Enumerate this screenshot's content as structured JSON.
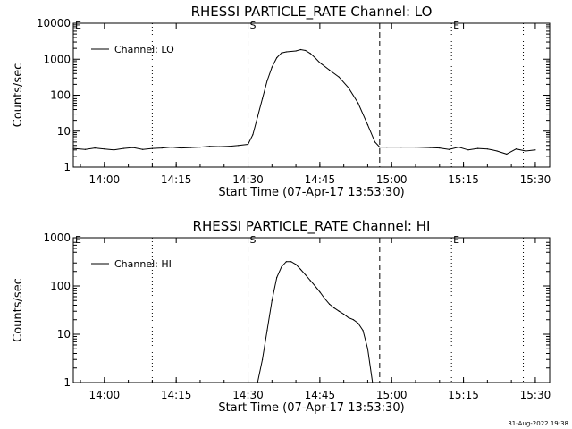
{
  "footer_timestamp": "31-Aug-2022 19:38",
  "chart_data": [
    {
      "type": "line",
      "title": "RHESSI PARTICLE_RATE Channel: LO",
      "xlabel": "Start Time (07-Apr-17 13:53:30)",
      "ylabel": "Counts/sec",
      "yscale": "log",
      "xlim": [
        "13:53:30",
        "15:33:00"
      ],
      "ylim": [
        1,
        10000
      ],
      "x_ticks": [
        "14:00",
        "14:15",
        "14:30",
        "14:45",
        "15:00",
        "15:15",
        "15:30"
      ],
      "y_ticks": [
        "1",
        "10",
        "100",
        "1000",
        "10000"
      ],
      "legend": {
        "placement": "top-left",
        "entries": [
          "Channel: LO"
        ]
      },
      "markers": [
        {
          "label": "E",
          "time": "13:53:30",
          "style": "dotted"
        },
        {
          "label": "",
          "time": "14:10:00",
          "style": "dotted"
        },
        {
          "label": "S",
          "time": "14:30:00",
          "style": "dashed"
        },
        {
          "label": "",
          "time": "14:57:30",
          "style": "dashed"
        },
        {
          "label": "E",
          "time": "15:12:30",
          "style": "dotted"
        },
        {
          "label": "",
          "time": "15:27:30",
          "style": "dotted"
        }
      ],
      "series": [
        {
          "name": "Channel: LO",
          "x": [
            "13:53:30",
            "13:56:00",
            "13:58:00",
            "14:00:00",
            "14:02:00",
            "14:04:00",
            "14:06:00",
            "14:08:00",
            "14:10:00",
            "14:12:00",
            "14:14:00",
            "14:16:00",
            "14:18:00",
            "14:20:00",
            "14:22:00",
            "14:24:00",
            "14:26:00",
            "14:28:00",
            "14:30:00",
            "14:31:00",
            "14:32:00",
            "14:33:00",
            "14:34:00",
            "14:35:00",
            "14:36:00",
            "14:37:00",
            "14:38:00",
            "14:40:00",
            "14:41:00",
            "14:42:00",
            "14:43:00",
            "14:44:00",
            "14:45:00",
            "14:47:00",
            "14:49:00",
            "14:51:00",
            "14:53:00",
            "14:55:00",
            "14:56:30",
            "14:57:30",
            "14:59:00",
            "15:02:00",
            "15:05:00",
            "15:08:00",
            "15:10:00",
            "15:12:00",
            "15:14:00",
            "15:16:00",
            "15:18:00",
            "15:20:00",
            "15:21:00",
            "15:22:00",
            "15:24:00",
            "15:26:00",
            "15:28:00",
            "15:30:00"
          ],
          "y": [
            3.3,
            3.1,
            3.4,
            3.2,
            3.0,
            3.3,
            3.5,
            3.1,
            3.3,
            3.4,
            3.6,
            3.4,
            3.5,
            3.6,
            3.8,
            3.7,
            3.8,
            4.0,
            4.3,
            8,
            25,
            80,
            250,
            600,
            1100,
            1500,
            1600,
            1700,
            1850,
            1750,
            1450,
            1100,
            800,
            500,
            320,
            160,
            60,
            15,
            5,
            3.6,
            3.6,
            3.6,
            3.6,
            3.5,
            3.4,
            3.1,
            3.6,
            3.0,
            3.3,
            3.2,
            3.0,
            2.8,
            2.3,
            3.2,
            2.8,
            3.0
          ]
        }
      ]
    },
    {
      "type": "line",
      "title": "RHESSI PARTICLE_RATE Channel: HI",
      "xlabel": "Start Time (07-Apr-17 13:53:30)",
      "ylabel": "Counts/sec",
      "yscale": "log",
      "xlim": [
        "13:53:30",
        "15:33:00"
      ],
      "ylim": [
        1,
        1000
      ],
      "x_ticks": [
        "14:00",
        "14:15",
        "14:30",
        "14:45",
        "15:00",
        "15:15",
        "15:30"
      ],
      "y_ticks": [
        "1",
        "10",
        "100",
        "1000"
      ],
      "legend": {
        "placement": "top-left",
        "entries": [
          "Channel: HI"
        ]
      },
      "markers": [
        {
          "label": "E",
          "time": "13:53:30",
          "style": "dotted"
        },
        {
          "label": "",
          "time": "14:10:00",
          "style": "dotted"
        },
        {
          "label": "S",
          "time": "14:30:00",
          "style": "dashed"
        },
        {
          "label": "",
          "time": "14:57:30",
          "style": "dashed"
        },
        {
          "label": "E",
          "time": "15:12:30",
          "style": "dotted"
        },
        {
          "label": "",
          "time": "15:27:30",
          "style": "dotted"
        }
      ],
      "series": [
        {
          "name": "Channel: HI",
          "x": [
            "14:32:00",
            "14:33:00",
            "14:34:00",
            "14:35:00",
            "14:36:00",
            "14:37:00",
            "14:38:00",
            "14:39:00",
            "14:40:00",
            "14:41:00",
            "14:42:00",
            "14:43:00",
            "14:44:00",
            "14:45:00",
            "14:46:00",
            "14:47:00",
            "14:48:00",
            "14:49:00",
            "14:50:00",
            "14:51:00",
            "14:52:00",
            "14:53:00",
            "14:54:00",
            "14:55:00",
            "14:56:00"
          ],
          "y": [
            1,
            3,
            12,
            50,
            150,
            250,
            320,
            320,
            280,
            220,
            170,
            130,
            100,
            75,
            55,
            42,
            35,
            30,
            26,
            22,
            20,
            17,
            12,
            5,
            1
          ]
        }
      ]
    }
  ]
}
